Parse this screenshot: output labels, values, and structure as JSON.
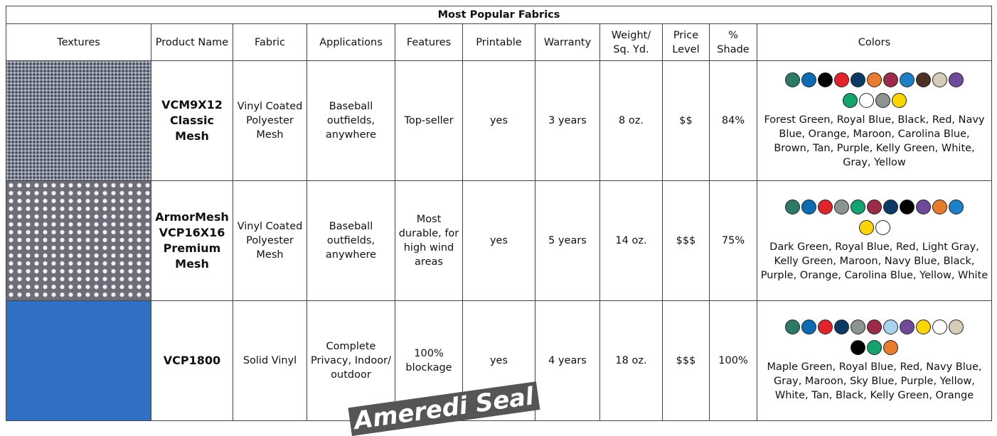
{
  "title": "Most Popular Fabrics",
  "headers": [
    "Textures",
    "Product Name",
    "Fabric",
    "Applications",
    "Features",
    "Printable",
    "Warranty",
    "Weight/ Sq. Yd.",
    "Price Level",
    "% Shade",
    "Colors"
  ],
  "rows": [
    {
      "cells": [
        "VCM9X12 Classic Mesh",
        "Vinyl Coated Polyester Mesh",
        "Baseball outfields, anywhere",
        "Top-seller",
        "yes",
        "3 years",
        "8 oz.",
        "$$",
        "84%",
        "Forest Green, Royal Blue, Black, Red, Navy Blue, Orange, Maroon, Carolina Blue, Brown, Tan, Purple, Kelly Green, White, Gray, Yellow"
      ],
      "swatches": [
        "#2b7a67",
        "#0b6cb6",
        "#000000",
        "#e4222b",
        "#0c3a66",
        "#e97b2d",
        "#9c2b48",
        "#1c80c8",
        "#4b3027",
        "#d7cdb6",
        "#6f4a9b",
        "#12a36f",
        "#ffffff",
        "#8b9490",
        "#ffd500"
      ]
    },
    {
      "cells": [
        "ArmorMesh VCP16X16 Premium Mesh",
        "Vinyl Coated Polyester Mesh",
        "Baseball outfields, anywhere",
        "Most durable, for high wind areas",
        "yes",
        "5 years",
        "14 oz.",
        "$$$",
        "75%",
        "Dark Green, Royal Blue, Red, Light Gray, Kelly Green, Maroon, Navy Blue, Black, Purple, Orange, Carolina Blue, Yellow, White"
      ],
      "swatches": [
        "#2b7a67",
        "#0b6cb6",
        "#e4222b",
        "#8b9490",
        "#12a36f",
        "#9c2b48",
        "#0c3a66",
        "#000000",
        "#6f4a9b",
        "#e97b2d",
        "#1c80c8",
        "#ffd500",
        "#ffffff"
      ]
    },
    {
      "cells": [
        "VCP1800",
        "Solid Vinyl",
        "Complete Privacy, Indoor/ outdoor",
        "100% blockage",
        "yes",
        "4 years",
        "18 oz.",
        "$$$",
        "100%",
        "Maple Green, Royal Blue, Red, Navy Blue, Gray, Maroon, Sky Blue, Purple, Yellow, White, Tan, Black, Kelly Green, Orange"
      ],
      "swatches": [
        "#2b7a67",
        "#0b6cb6",
        "#e4222b",
        "#0c3a66",
        "#8b9490",
        "#9c2b48",
        "#a8d3ee",
        "#6f4a9b",
        "#ffd500",
        "#ffffff",
        "#d7cdb6",
        "#000000",
        "#12a36f",
        "#e97b2d"
      ]
    }
  ],
  "watermark": "Ameredi Seal"
}
